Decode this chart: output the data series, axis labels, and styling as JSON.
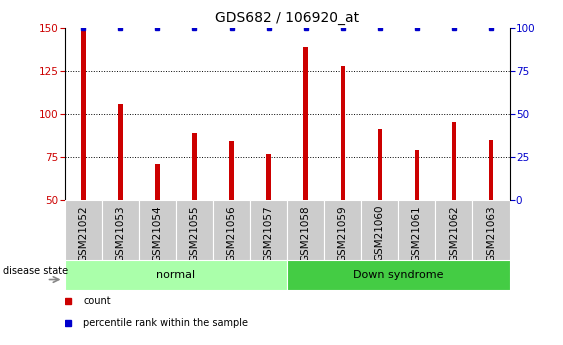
{
  "title": "GDS682 / 106920_at",
  "samples": [
    "GSM21052",
    "GSM21053",
    "GSM21054",
    "GSM21055",
    "GSM21056",
    "GSM21057",
    "GSM21058",
    "GSM21059",
    "GSM21060",
    "GSM21061",
    "GSM21062",
    "GSM21063"
  ],
  "counts": [
    148,
    106,
    71,
    89,
    84,
    77,
    139,
    128,
    91,
    79,
    95,
    85
  ],
  "bar_color": "#cc0000",
  "dot_color": "#0000cc",
  "ylim_left": [
    50,
    150
  ],
  "ylim_right": [
    0,
    100
  ],
  "yticks_left": [
    50,
    75,
    100,
    125,
    150
  ],
  "yticks_right": [
    0,
    25,
    50,
    75,
    100
  ],
  "groups": [
    {
      "label": "normal",
      "start": 0,
      "end": 6,
      "color": "#aaffaa"
    },
    {
      "label": "Down syndrome",
      "start": 6,
      "end": 12,
      "color": "#44cc44"
    }
  ],
  "disease_state_label": "disease state",
  "legend_items": [
    {
      "label": "count",
      "color": "#cc0000"
    },
    {
      "label": "percentile rank within the sample",
      "color": "#0000cc"
    }
  ],
  "background_color": "#ffffff",
  "sample_box_color": "#cccccc",
  "title_fontsize": 10,
  "tick_fontsize": 7.5,
  "label_fontsize": 8,
  "bar_width": 0.12
}
